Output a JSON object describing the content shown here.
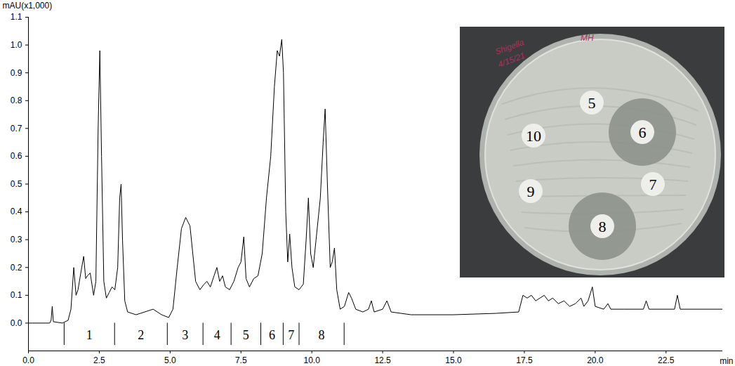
{
  "chart_data": {
    "type": "line",
    "x_label": "min",
    "y_label": "mAU(x1,000)",
    "color": "#000000",
    "x": [
      0.0,
      0.75,
      0.8,
      0.84,
      0.88,
      1.2,
      1.4,
      1.5,
      1.6,
      1.68,
      1.75,
      1.88,
      1.95,
      2.02,
      2.08,
      2.18,
      2.3,
      2.38,
      2.46,
      2.52,
      2.58,
      2.66,
      2.75,
      2.85,
      2.95,
      3.05,
      3.15,
      3.22,
      3.27,
      3.32,
      3.4,
      3.5,
      3.8,
      4.1,
      4.4,
      4.7,
      4.95,
      5.1,
      5.25,
      5.4,
      5.55,
      5.7,
      5.8,
      5.9,
      6.05,
      6.2,
      6.3,
      6.42,
      6.55,
      6.65,
      6.75,
      6.85,
      6.95,
      7.1,
      7.25,
      7.4,
      7.5,
      7.6,
      7.68,
      7.8,
      7.95,
      8.1,
      8.25,
      8.4,
      8.55,
      8.68,
      8.78,
      8.86,
      8.94,
      9.0,
      9.08,
      9.15,
      9.22,
      9.3,
      9.4,
      9.55,
      9.7,
      9.8,
      9.88,
      9.96,
      10.05,
      10.15,
      10.3,
      10.4,
      10.47,
      10.55,
      10.65,
      10.72,
      10.8,
      10.88,
      11.0,
      11.15,
      11.3,
      11.4,
      11.55,
      11.8,
      12.0,
      12.1,
      12.2,
      12.5,
      12.65,
      12.8,
      13.5,
      15.0,
      16.5,
      17.3,
      17.45,
      17.6,
      17.75,
      17.9,
      18.05,
      18.2,
      18.35,
      18.5,
      18.7,
      18.9,
      19.1,
      19.3,
      19.5,
      19.6,
      19.75,
      19.9,
      20.0,
      20.3,
      20.45,
      20.55,
      21.0,
      21.7,
      21.8,
      21.9,
      22.8,
      22.9,
      23.0,
      24.5
    ],
    "values": [
      0.0,
      0.0,
      0.01,
      0.06,
      0.005,
      0.0,
      0.01,
      0.05,
      0.2,
      0.1,
      0.12,
      0.2,
      0.24,
      0.16,
      0.17,
      0.18,
      0.1,
      0.15,
      0.7,
      0.98,
      0.6,
      0.15,
      0.09,
      0.11,
      0.13,
      0.12,
      0.2,
      0.45,
      0.5,
      0.3,
      0.08,
      0.04,
      0.03,
      0.04,
      0.05,
      0.03,
      0.02,
      0.05,
      0.2,
      0.34,
      0.38,
      0.35,
      0.25,
      0.15,
      0.12,
      0.14,
      0.15,
      0.13,
      0.17,
      0.2,
      0.15,
      0.17,
      0.13,
      0.12,
      0.15,
      0.2,
      0.22,
      0.31,
      0.16,
      0.13,
      0.16,
      0.17,
      0.25,
      0.45,
      0.6,
      0.85,
      0.98,
      0.96,
      1.02,
      0.9,
      0.4,
      0.22,
      0.32,
      0.2,
      0.13,
      0.12,
      0.14,
      0.3,
      0.45,
      0.25,
      0.2,
      0.3,
      0.45,
      0.65,
      0.77,
      0.5,
      0.2,
      0.22,
      0.27,
      0.12,
      0.05,
      0.06,
      0.11,
      0.09,
      0.05,
      0.04,
      0.05,
      0.08,
      0.04,
      0.05,
      0.08,
      0.04,
      0.03,
      0.03,
      0.035,
      0.04,
      0.1,
      0.09,
      0.1,
      0.08,
      0.09,
      0.1,
      0.08,
      0.09,
      0.07,
      0.08,
      0.06,
      0.07,
      0.09,
      0.06,
      0.08,
      0.13,
      0.06,
      0.05,
      0.07,
      0.05,
      0.05,
      0.05,
      0.08,
      0.05,
      0.05,
      0.1,
      0.05,
      0.05
    ],
    "xlim": [
      0,
      24.5
    ],
    "ylim": [
      -0.1,
      1.1
    ],
    "xticks": [
      {
        "value": 0,
        "label": "0.0"
      },
      2.5,
      {
        "value": 5,
        "label": "5.0"
      },
      7.5,
      {
        "value": 10,
        "label": "10.0"
      },
      12.5,
      {
        "value": 15,
        "label": "15.0"
      },
      17.5,
      {
        "value": 20,
        "label": "20.0"
      },
      22.5
    ],
    "yticks": [
      {
        "value": 0,
        "label": "0.0"
      },
      0.1,
      0.2,
      0.3,
      0.4,
      0.5,
      0.6,
      0.7,
      0.8,
      0.9,
      {
        "value": 1,
        "label": "1.0"
      },
      1.1
    ],
    "grid": false,
    "fractions": [
      {
        "label": "1",
        "start": 1.26,
        "end": 3.04
      },
      {
        "label": "2",
        "start": 3.04,
        "end": 4.9
      },
      {
        "label": "3",
        "start": 4.9,
        "end": 6.16
      },
      {
        "label": "4",
        "start": 6.16,
        "end": 7.15
      },
      {
        "label": "5",
        "start": 7.15,
        "end": 8.2
      },
      {
        "label": "6",
        "start": 8.2,
        "end": 8.99
      },
      {
        "label": "7",
        "start": 8.99,
        "end": 9.55
      },
      {
        "label": "8",
        "start": 9.55,
        "end": 11.14
      }
    ]
  },
  "inset": {
    "handwriting": [
      "Shigella",
      "4/15/21",
      "MH"
    ],
    "disks": [
      {
        "label": "5",
        "inhibition": false
      },
      {
        "label": "6",
        "inhibition": true
      },
      {
        "label": "7",
        "inhibition": false
      },
      {
        "label": "8",
        "inhibition": true
      },
      {
        "label": "9",
        "inhibition": false
      },
      {
        "label": "10",
        "inhibition": false
      }
    ]
  }
}
